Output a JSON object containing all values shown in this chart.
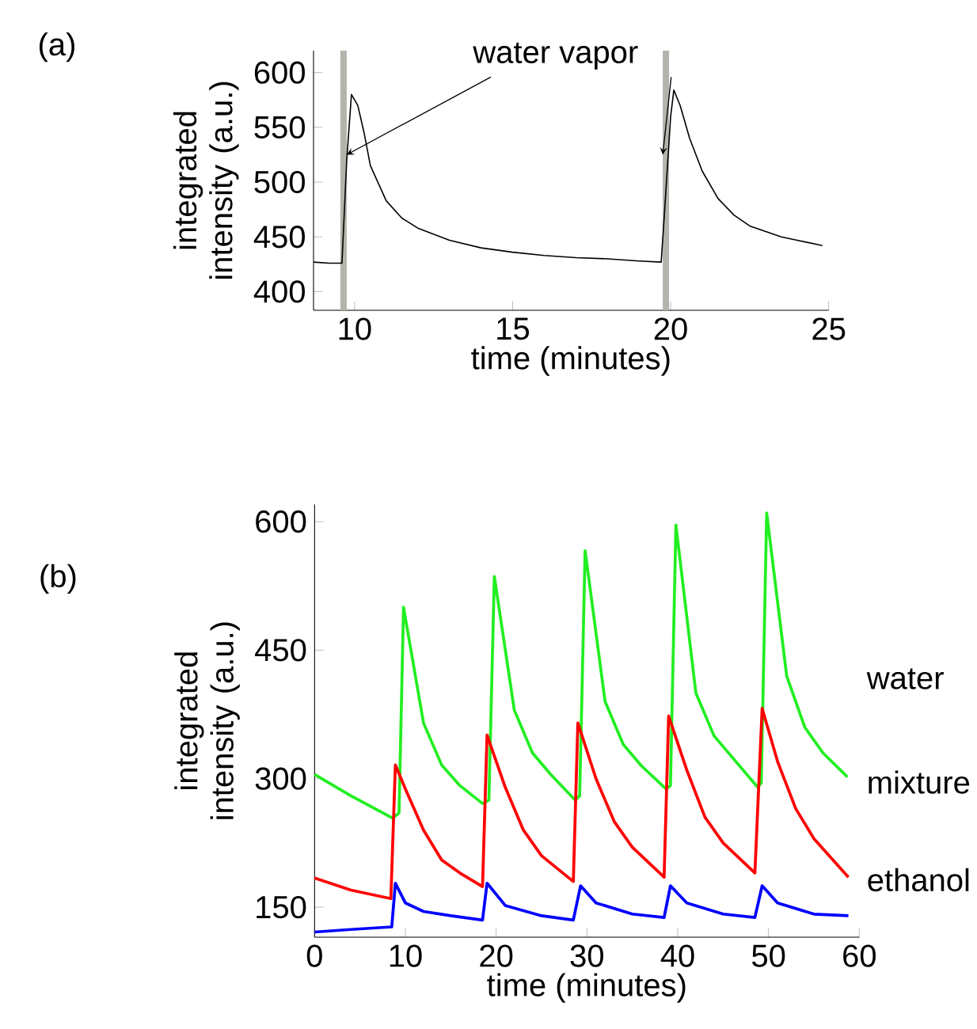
{
  "chart_data": [
    {
      "type": "line",
      "title": "(a)",
      "xlabel": "time (minutes)",
      "ylabel": "integrated intensity (a.u.)",
      "xlim": [
        8.7,
        25
      ],
      "ylim": [
        383,
        620
      ],
      "xticks": [
        10,
        15,
        20,
        25
      ],
      "yticks": [
        400,
        450,
        500,
        550,
        600
      ],
      "bands": [
        {
          "axis": "x",
          "from": 9.55,
          "to": 9.75,
          "color": "#b4b4ac"
        },
        {
          "axis": "x",
          "from": 19.75,
          "to": 19.95,
          "color": "#b4b4ac"
        }
      ],
      "annotations": [
        {
          "text": "water vapor",
          "x": 9.75,
          "y": 525
        }
      ],
      "series": [
        {
          "color": "#000000",
          "x": [
            8.7,
            9.2,
            9.6,
            9.75,
            9.9,
            10.1,
            10.3,
            10.5,
            11,
            11.5,
            12,
            13,
            14,
            15,
            16,
            17,
            18,
            19,
            19.7,
            19.8,
            20.0,
            20.1,
            20.3,
            20.6,
            21,
            21.5,
            22,
            22.5,
            23,
            23.5,
            24,
            24.8
          ],
          "values": [
            427,
            426,
            426,
            520,
            580,
            570,
            545,
            515,
            483,
            467,
            458,
            447,
            440,
            436,
            433,
            431,
            430,
            428,
            427,
            470,
            560,
            584,
            570,
            540,
            510,
            485,
            470,
            460,
            455,
            450,
            447,
            442
          ]
        }
      ]
    },
    {
      "type": "line",
      "title": "(b)",
      "xlabel": "time (minutes)",
      "ylabel": "integrated intensity (a.u.)",
      "xlim": [
        0,
        60
      ],
      "ylim": [
        115,
        620
      ],
      "xticks": [
        0,
        10,
        20,
        30,
        40,
        50,
        60
      ],
      "yticks": [
        150,
        300,
        450,
        600
      ],
      "series": [
        {
          "name": "water",
          "color": "#22ee22",
          "x": [
            0,
            4,
            8.6,
            9.3,
            9.8,
            12,
            14,
            16,
            18.5,
            19.2,
            19.8,
            22,
            24,
            26,
            28.7,
            29.2,
            29.8,
            32,
            34,
            36,
            38.7,
            39.2,
            39.8,
            42,
            44,
            46,
            48.8,
            49.2,
            49.8,
            52,
            54,
            56,
            58.7
          ],
          "values": [
            305,
            280,
            254,
            260,
            500,
            365,
            316,
            292,
            271,
            275,
            536,
            380,
            330,
            305,
            275,
            280,
            566,
            390,
            340,
            315,
            288,
            292,
            596,
            400,
            350,
            325,
            290,
            295,
            610,
            420,
            360,
            330,
            302
          ]
        },
        {
          "name": "mixture",
          "color": "#ff0000",
          "x": [
            0,
            4,
            8.4,
            8.9,
            10,
            12,
            14,
            16,
            18.5,
            19.0,
            21,
            23,
            25,
            28.5,
            29.0,
            31,
            33,
            35,
            38.5,
            39.0,
            41,
            43,
            45,
            48.5,
            49.3,
            51,
            53,
            55,
            58.8
          ],
          "values": [
            184,
            170,
            160,
            316,
            288,
            240,
            205,
            190,
            174,
            351,
            290,
            240,
            210,
            180,
            365,
            300,
            250,
            220,
            185,
            373,
            310,
            255,
            225,
            190,
            382,
            320,
            265,
            230,
            185
          ]
        },
        {
          "name": "ethanol",
          "color": "#0000ff",
          "x": [
            0,
            4,
            8.5,
            8.9,
            10,
            12,
            15,
            18.5,
            19.0,
            21,
            25,
            28.5,
            29.3,
            31,
            35,
            38.5,
            39.2,
            41,
            45,
            48.5,
            49.3,
            51,
            55,
            58.8
          ],
          "values": [
            121,
            124,
            127,
            178,
            155,
            145,
            140,
            135,
            178,
            152,
            140,
            135,
            175,
            155,
            142,
            138,
            175,
            155,
            142,
            138,
            175,
            155,
            142,
            140
          ]
        }
      ]
    }
  ]
}
